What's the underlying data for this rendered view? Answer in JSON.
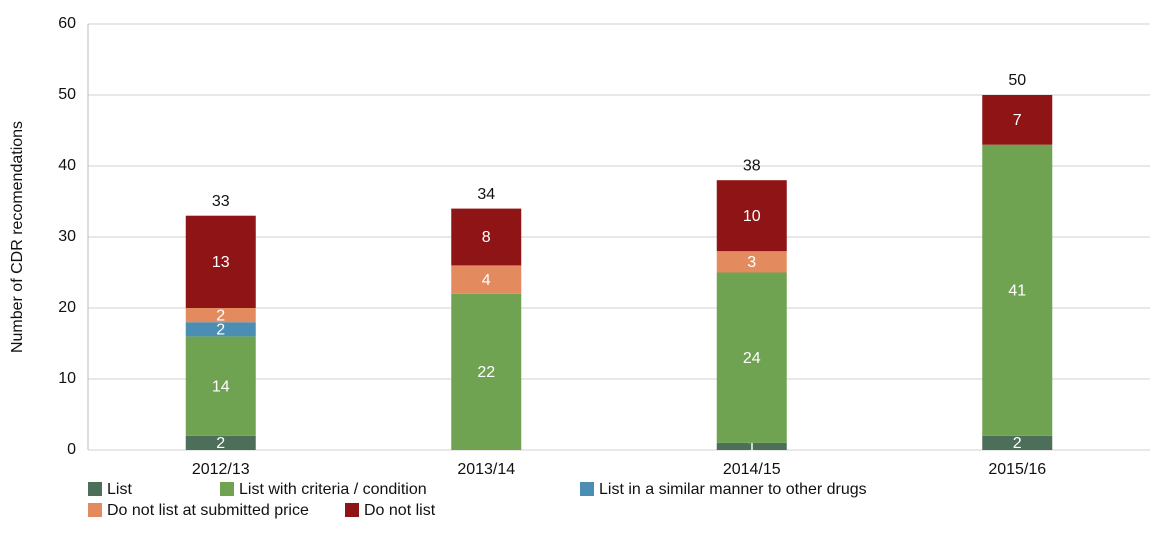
{
  "chart_data": {
    "type": "stacked-bar",
    "y_label": "Number of CDR recomendations",
    "categories": [
      "2012/13",
      "2013/14",
      "2014/15",
      "2015/16"
    ],
    "series": [
      {
        "name": "List",
        "color": "#4d6e58",
        "values": [
          2,
          null,
          1,
          2
        ]
      },
      {
        "name": "List with criteria / condition",
        "color": "#6fa352",
        "values": [
          14,
          22,
          24,
          41
        ]
      },
      {
        "name": "List in a similar manner to other drugs",
        "color": "#4b8db3",
        "values": [
          2,
          null,
          null,
          null
        ]
      },
      {
        "name": "Do not list at submitted price",
        "color": "#e38b5e",
        "values": [
          2,
          4,
          3,
          null
        ]
      },
      {
        "name": "Do not list",
        "color": "#8f1416",
        "values": [
          13,
          8,
          10,
          7
        ]
      }
    ],
    "totals": [
      33,
      34,
      38,
      50
    ],
    "ylim": [
      0,
      60
    ],
    "yticks": [
      0,
      10,
      20,
      30,
      40,
      50,
      60
    ],
    "grid": true,
    "legend": "bottom"
  }
}
